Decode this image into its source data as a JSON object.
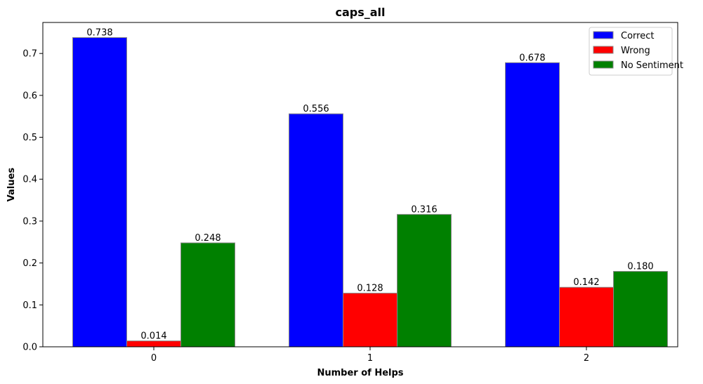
{
  "chart_data": {
    "type": "bar",
    "title": "caps_all",
    "xlabel": "Number of Helps",
    "ylabel": "Values",
    "categories": [
      "0",
      "1",
      "2"
    ],
    "ylim": [
      0,
      0.774
    ],
    "yticks": [
      0.0,
      0.1,
      0.2,
      0.3,
      0.4,
      0.5,
      0.6,
      0.7
    ],
    "ytick_labels": [
      "0.0",
      "0.1",
      "0.2",
      "0.3",
      "0.4",
      "0.5",
      "0.6",
      "0.7"
    ],
    "grid": false,
    "legend_position": "top-right",
    "series": [
      {
        "name": "Correct",
        "color": "#0000ff",
        "values": [
          0.738,
          0.556,
          0.678
        ],
        "labels": [
          "0.738",
          "0.556",
          "0.678"
        ]
      },
      {
        "name": "Wrong",
        "color": "#ff0000",
        "values": [
          0.014,
          0.128,
          0.142
        ],
        "labels": [
          "0.014",
          "0.128",
          "0.142"
        ]
      },
      {
        "name": "No Sentiment",
        "color": "#008000",
        "values": [
          0.248,
          0.316,
          0.18
        ],
        "labels": [
          "0.248",
          "0.316",
          "0.180"
        ]
      }
    ]
  }
}
